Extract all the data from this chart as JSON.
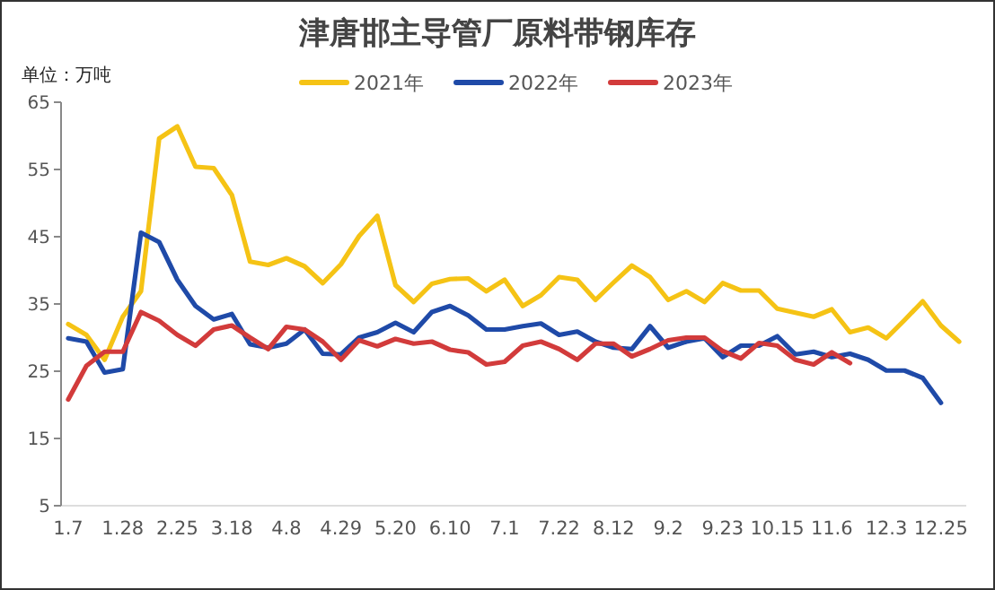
{
  "chart_data": {
    "type": "line",
    "title": "津唐邯主导管厂原料带钢库存",
    "ylabel": "单位：万吨",
    "categories": [
      "1.7",
      null,
      null,
      "1.28",
      null,
      null,
      "2.25",
      null,
      null,
      "3.18",
      null,
      null,
      "4.8",
      null,
      null,
      "4.29",
      null,
      null,
      "5.20",
      null,
      null,
      "6.10",
      null,
      null,
      "7.1",
      null,
      null,
      "7.22",
      null,
      null,
      "8.12",
      null,
      null,
      "9.2",
      null,
      null,
      "9.23",
      null,
      null,
      "10.15",
      null,
      null,
      "11.6",
      null,
      null,
      "12.3",
      null,
      null,
      "12.25",
      null
    ],
    "series": [
      {
        "name": "2021年",
        "color": "#f5c315",
        "values": [
          32.0,
          30.4,
          26.7,
          33.1,
          36.9,
          59.6,
          61.4,
          55.4,
          55.2,
          51.2,
          41.3,
          40.8,
          41.8,
          40.6,
          38.1,
          40.9,
          45.1,
          48.1,
          37.8,
          35.3,
          38.0,
          38.7,
          38.8,
          36.9,
          38.6,
          34.7,
          36.3,
          39.0,
          38.6,
          35.6,
          38.2,
          40.7,
          39.0,
          35.6,
          36.9,
          35.3,
          38.1,
          37.0,
          37.0,
          34.3,
          33.7,
          33.1,
          34.2,
          30.8,
          31.5,
          29.9,
          32.6,
          35.4,
          31.8,
          29.4
        ]
      },
      {
        "name": "2022年",
        "color": "#1f4aa8",
        "values": [
          29.9,
          29.4,
          24.8,
          25.3,
          45.6,
          44.2,
          38.6,
          34.7,
          32.7,
          33.5,
          29.0,
          28.5,
          29.1,
          31.2,
          27.6,
          27.5,
          30.0,
          30.8,
          32.2,
          30.8,
          33.8,
          34.7,
          33.3,
          31.2,
          31.2,
          31.7,
          32.1,
          30.4,
          30.9,
          29.4,
          28.5,
          28.3,
          31.7,
          28.5,
          29.4,
          29.9,
          27.1,
          28.8,
          28.8,
          30.2,
          27.5,
          27.9,
          27.1,
          27.6,
          26.7,
          25.1,
          25.1,
          24.0,
          20.3,
          null
        ]
      },
      {
        "name": "2023年",
        "color": "#d23b3b",
        "values": [
          20.8,
          25.8,
          27.9,
          27.9,
          33.8,
          32.5,
          30.4,
          28.8,
          31.2,
          31.8,
          30.0,
          28.3,
          31.6,
          31.2,
          29.4,
          26.7,
          29.6,
          28.7,
          29.8,
          29.1,
          29.4,
          28.2,
          27.8,
          26.0,
          26.4,
          28.8,
          29.4,
          28.3,
          26.7,
          29.1,
          29.1,
          27.2,
          28.3,
          29.6,
          30.0,
          30.0,
          28.0,
          26.9,
          29.2,
          28.8,
          26.7,
          26.0,
          27.8,
          26.2,
          null,
          null,
          null,
          null,
          null,
          null
        ]
      }
    ],
    "ylim": [
      5,
      65
    ],
    "yticks": [
      5,
      15,
      25,
      35,
      45,
      55,
      65
    ],
    "grid": false,
    "legend": "top",
    "marker": "none",
    "line_style": "solid"
  }
}
